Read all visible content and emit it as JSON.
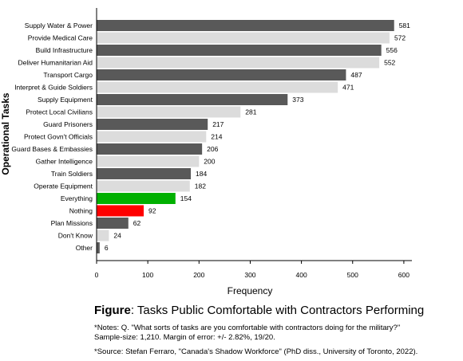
{
  "chart_data": {
    "type": "bar",
    "orientation": "horizontal",
    "ylabel": "Operational Tasks",
    "xlabel": "Frequency",
    "xlim": [
      0,
      640
    ],
    "xticks": [
      0,
      100,
      200,
      300,
      400,
      500,
      600
    ],
    "grid": false,
    "categories": [
      "Supply Water & Power",
      "Provide Medical Care",
      "Build Infrastructure",
      "Deliver Humanitarian Aid",
      "Transport Cargo",
      "Interpret & Guide Soldiers",
      "Supply Equipment",
      "Protect Local Civilians",
      "Guard Prisoners",
      "Protect Govn't Officials",
      "Guard Bases & Embassies",
      "Gather Intelligence",
      "Train Soldiers",
      "Operate Equipment",
      "Everything",
      "Nothing",
      "Plan Missions",
      "Don't Know",
      "Other"
    ],
    "values": [
      581,
      572,
      556,
      552,
      487,
      471,
      373,
      281,
      217,
      214,
      206,
      200,
      184,
      182,
      154,
      92,
      62,
      24,
      6
    ],
    "bar_colors": [
      "#595959",
      "#dcdcdc",
      "#595959",
      "#dcdcdc",
      "#595959",
      "#dcdcdc",
      "#595959",
      "#dcdcdc",
      "#595959",
      "#dcdcdc",
      "#595959",
      "#dcdcdc",
      "#595959",
      "#dcdcdc",
      "#00b000",
      "#ff0000",
      "#595959",
      "#dcdcdc",
      "#595959"
    ]
  },
  "caption": {
    "label": "Figure",
    "text": ": Tasks Public Comfortable with Contractors Performing"
  },
  "notes": {
    "line1": "*Notes: Q. \"What sorts of tasks are you comfortable with contractors doing for the military?\"",
    "line2": "Sample-size: 1,210. Margin of error: +/- 2.82%, 19/20.",
    "source": "*Source: Stefan Ferraro, \"Canada's Shadow Workforce\" (PhD diss., University of Toronto, 2022)."
  }
}
